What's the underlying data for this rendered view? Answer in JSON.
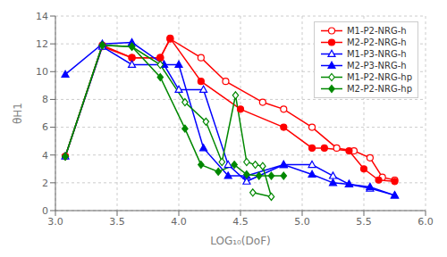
{
  "chart_data": {
    "type": "line",
    "xlabel": "LOG₁₀(DoF)",
    "ylabel": "θH1",
    "xlim": [
      3.0,
      6.0
    ],
    "ylim": [
      0,
      14
    ],
    "xticks": [
      {
        "value": 3.0,
        "label": "3.0"
      },
      {
        "value": 3.5,
        "label": "3.5"
      },
      {
        "value": 4.0,
        "label": "4.0"
      },
      {
        "value": 4.5,
        "label": "4.5"
      },
      {
        "value": 5.0,
        "label": "5.0"
      },
      {
        "value": 5.5,
        "label": "5.5"
      },
      {
        "value": 6.0,
        "label": "6.0"
      }
    ],
    "yticks": [
      0,
      2,
      4,
      6,
      8,
      10,
      12,
      14
    ],
    "grid": true,
    "legend": "upper right",
    "series": [
      {
        "name": "M1-P2-NRG-h",
        "color": "#ff0000",
        "marker": "circle-open",
        "x": [
          3.08,
          3.38,
          3.62,
          3.85,
          3.93,
          4.18,
          4.38,
          4.68,
          4.85,
          5.08,
          5.28,
          5.42,
          5.55,
          5.65,
          5.75
        ],
        "values": [
          3.9,
          11.8,
          11.0,
          11.0,
          12.35,
          11.0,
          9.3,
          7.8,
          7.3,
          6.0,
          4.5,
          4.3,
          3.8,
          2.4,
          2.2
        ]
      },
      {
        "name": "M2-P2-NRG-h",
        "color": "#ff0000",
        "marker": "circle",
        "x": [
          3.08,
          3.38,
          3.62,
          3.85,
          3.93,
          4.18,
          4.5,
          4.85,
          5.08,
          5.18,
          5.38,
          5.5,
          5.62,
          5.75
        ],
        "values": [
          3.9,
          11.9,
          11.0,
          11.0,
          12.4,
          9.3,
          7.3,
          6.0,
          4.5,
          4.5,
          4.3,
          3.0,
          2.2,
          2.1
        ]
      },
      {
        "name": "M1-P3-NRG-h",
        "color": "#0000ff",
        "marker": "triangle-open",
        "x": [
          3.08,
          3.38,
          3.62,
          3.88,
          4.0,
          4.2,
          4.4,
          4.55,
          4.85,
          5.08,
          5.25,
          5.38,
          5.55,
          5.75
        ],
        "values": [
          3.9,
          11.8,
          10.5,
          10.5,
          8.7,
          8.7,
          3.3,
          2.1,
          3.3,
          3.3,
          2.5,
          1.9,
          1.6,
          1.1
        ]
      },
      {
        "name": "M2-P3-NRG-h",
        "color": "#0000ff",
        "marker": "triangle",
        "x": [
          3.08,
          3.38,
          3.62,
          3.88,
          4.0,
          4.2,
          4.4,
          4.55,
          4.85,
          5.08,
          5.25,
          5.38,
          5.55,
          5.75
        ],
        "values": [
          9.8,
          12.0,
          12.1,
          10.5,
          10.5,
          4.5,
          2.5,
          2.5,
          3.3,
          2.6,
          2.0,
          1.9,
          1.7,
          1.1
        ]
      },
      {
        "name": "M1-P2-NRG-hp",
        "color": "#008800",
        "marker": "diamond-open",
        "x": [
          3.08,
          3.38,
          3.62,
          3.85,
          4.05,
          4.22,
          4.35,
          4.46,
          4.55,
          4.62,
          4.68,
          4.75,
          4.6
        ],
        "values": [
          3.9,
          11.9,
          11.8,
          10.5,
          7.8,
          6.4,
          3.5,
          8.3,
          3.5,
          3.3,
          3.2,
          1.0,
          1.3
        ]
      },
      {
        "name": "M2-P2-NRG-hp",
        "color": "#008800",
        "marker": "diamond",
        "x": [
          3.08,
          3.38,
          3.62,
          3.85,
          4.05,
          4.18,
          4.32,
          4.45,
          4.55,
          4.65,
          4.75,
          4.85
        ],
        "values": [
          3.9,
          11.9,
          11.8,
          9.6,
          5.9,
          3.3,
          2.8,
          3.3,
          2.6,
          2.5,
          2.5,
          2.5
        ]
      }
    ]
  }
}
